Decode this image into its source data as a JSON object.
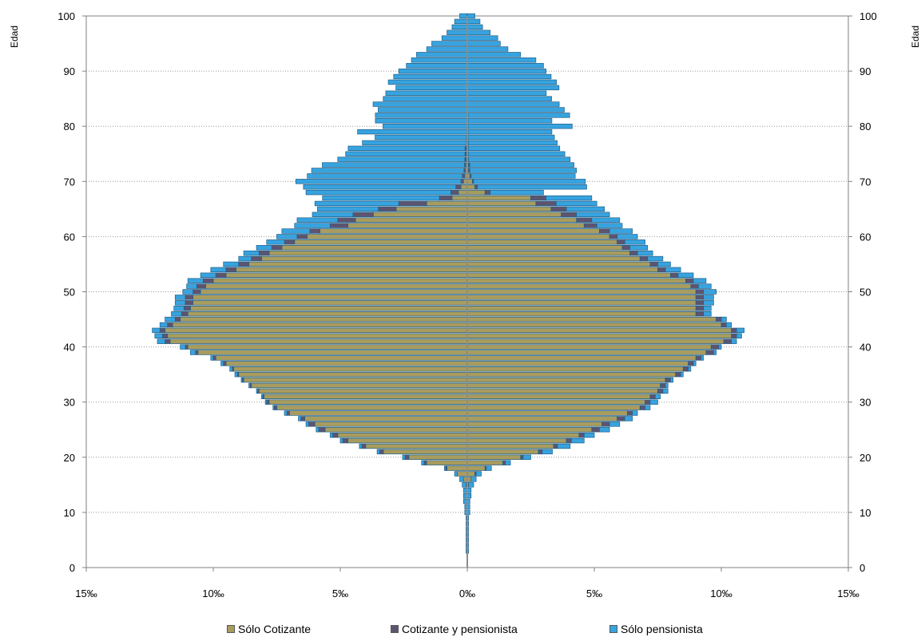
{
  "chart_data": {
    "type": "bar",
    "orientation": "horizontal-population-pyramid",
    "left_side": "women",
    "right_side": "men",
    "y_axis_label_left": "Edad",
    "y_axis_label_right": "Edad",
    "y_ticks": [
      "0",
      "10",
      "20",
      "30",
      "40",
      "50",
      "60",
      "70",
      "80",
      "90",
      "100"
    ],
    "ylim": [
      0,
      100
    ],
    "x_ticks": [
      "15‰",
      "10‰",
      "5‰",
      "0‰",
      "5‰",
      "10‰",
      "15‰"
    ],
    "xlim_per_mille": [
      -15,
      15
    ],
    "grid": "horizontal dotted lines at each 10 years",
    "legend_position": "bottom",
    "legend": [
      {
        "name": "Sólo Cotizante",
        "color": "#a89c5e"
      },
      {
        "name": "Cotizante y pensionista",
        "color": "#5d5470"
      },
      {
        "name": "Sólo pensionista",
        "color": "#37a3df"
      }
    ],
    "ages": [
      3,
      4,
      5,
      6,
      7,
      8,
      9,
      10,
      11,
      12,
      13,
      14,
      15,
      16,
      17,
      18,
      19,
      20,
      21,
      22,
      23,
      24,
      25,
      26,
      27,
      28,
      29,
      30,
      31,
      32,
      33,
      34,
      35,
      36,
      37,
      38,
      39,
      40,
      41,
      42,
      43,
      44,
      45,
      46,
      47,
      48,
      49,
      50,
      51,
      52,
      53,
      54,
      55,
      56,
      57,
      58,
      59,
      60,
      61,
      62,
      63,
      64,
      65,
      66,
      67,
      68,
      69,
      70,
      71,
      72,
      73,
      74,
      75,
      76,
      77,
      78,
      79,
      80,
      81,
      82,
      83,
      84,
      85,
      86,
      87,
      88,
      89,
      90,
      91,
      92,
      93,
      94,
      95,
      96,
      97,
      98,
      99,
      100
    ],
    "series_left": {
      "cotizante": [
        0,
        0,
        0,
        0,
        0,
        0,
        0,
        0,
        0,
        0,
        0,
        0,
        0.05,
        0.15,
        0.4,
        0.8,
        1.6,
        2.3,
        3.3,
        4,
        4.7,
        5.1,
        5.6,
        6,
        6.4,
        7,
        7.5,
        7.8,
        8,
        8.2,
        8.5,
        8.8,
        9,
        9.2,
        9.5,
        9.9,
        10.6,
        11,
        11.7,
        11.8,
        11.9,
        11.6,
        11.3,
        11,
        10.9,
        10.8,
        10.8,
        10.5,
        10.3,
        10,
        9.5,
        9.1,
        8.6,
        8.1,
        7.8,
        7.3,
        6.8,
        6.3,
        5.8,
        4.7,
        4.4,
        3.7,
        2.8,
        1.6,
        0.6,
        0.35,
        0.25,
        0.15,
        0.1,
        0.08,
        0.06,
        0.05,
        0.04,
        0.04,
        0.03,
        0.03,
        0.02,
        0.02,
        0.02,
        0.02,
        0.01,
        0.01,
        0.01,
        0.01,
        0.01,
        0.01,
        0,
        0,
        0,
        0,
        0,
        0,
        0,
        0,
        0,
        0,
        0,
        0
      ],
      "cotizante_y_pensionista": [
        0,
        0,
        0,
        0,
        0,
        0,
        0,
        0,
        0,
        0,
        0,
        0,
        0,
        0,
        0,
        0.05,
        0.1,
        0.15,
        0.15,
        0.15,
        0.2,
        0.2,
        0.25,
        0.25,
        0.15,
        0.1,
        0.1,
        0.1,
        0.05,
        0.05,
        0.05,
        0.05,
        0.05,
        0.05,
        0.1,
        0.1,
        0.1,
        0.1,
        0.2,
        0.2,
        0.2,
        0.2,
        0.2,
        0.25,
        0.25,
        0.3,
        0.3,
        0.3,
        0.35,
        0.4,
        0.4,
        0.4,
        0.4,
        0.4,
        0.4,
        0.4,
        0.4,
        0.4,
        0.4,
        0.7,
        0.7,
        0.8,
        0.7,
        1.1,
        0.5,
        0.3,
        0.2,
        0.1,
        0.1,
        0.05,
        0.05,
        0.05,
        0.05,
        0.05,
        0,
        0,
        0,
        0,
        0,
        0,
        0,
        0,
        0,
        0,
        0,
        0,
        0,
        0,
        0,
        0,
        0,
        0,
        0,
        0,
        0,
        0,
        0,
        0
      ],
      "solo_pensionista": [
        0.05,
        0.05,
        0.05,
        0.05,
        0.05,
        0.05,
        0.05,
        0.1,
        0.1,
        0.15,
        0.15,
        0.15,
        0.15,
        0.15,
        0.1,
        0.05,
        0.1,
        0.1,
        0.1,
        0.1,
        0.1,
        0.1,
        0.1,
        0.1,
        0.1,
        0.1,
        0.05,
        0.05,
        0.05,
        0.05,
        0.05,
        0.05,
        0.1,
        0.1,
        0.1,
        0.1,
        0.2,
        0.2,
        0.3,
        0.3,
        0.3,
        0.3,
        0.4,
        0.4,
        0.4,
        0.4,
        0.4,
        0.4,
        0.4,
        0.6,
        0.6,
        0.6,
        0.6,
        0.5,
        0.6,
        0.6,
        0.7,
        0.8,
        1.1,
        1.4,
        1.6,
        1.6,
        2.4,
        3.3,
        4.6,
        5.7,
        6,
        6.5,
        6.1,
        6.0,
        5.6,
        5.0,
        4.7,
        4.6,
        4.1,
        3.6,
        4.3,
        3.3,
        3.6,
        3.6,
        3.5,
        3.7,
        3.3,
        3.2,
        2.8,
        3.1,
        2.9,
        2.7,
        2.4,
        2.2,
        2.0,
        1.6,
        1.4,
        1.0,
        0.8,
        0.6,
        0.5,
        0.3,
        0.2,
        0.15,
        0.1,
        0.08,
        0.05,
        0.03
      ]
    },
    "series_right": {
      "cotizante": [
        0,
        0,
        0,
        0,
        0,
        0,
        0,
        0,
        0,
        0,
        0,
        0,
        0.05,
        0.15,
        0.3,
        0.7,
        1.4,
        2.1,
        2.8,
        3.4,
        3.9,
        4.4,
        4.9,
        5.3,
        5.9,
        6.3,
        6.8,
        7,
        7.2,
        7.5,
        7.6,
        7.8,
        8.2,
        8.5,
        8.7,
        9.0,
        9.4,
        9.6,
        10.1,
        10.4,
        10.4,
        10.0,
        9.8,
        9.0,
        9.0,
        9.0,
        9.0,
        9.0,
        8.8,
        8.6,
        8.0,
        7.5,
        7.2,
        6.8,
        6.4,
        6.1,
        5.9,
        5.6,
        5.2,
        4.6,
        4.3,
        3.7,
        3.3,
        2.7,
        2.5,
        0.7,
        0.3,
        0.2,
        0.1,
        0.05,
        0.05,
        0.05,
        0.04,
        0.04,
        0.04,
        0.03,
        0.03,
        0.03,
        0.03,
        0.03,
        0.02,
        0.02,
        0.02,
        0.01,
        0.01,
        0.01,
        0,
        0,
        0,
        0,
        0,
        0,
        0,
        0,
        0,
        0,
        0,
        0
      ],
      "cotizante_y_pensionista": [
        0,
        0,
        0,
        0,
        0,
        0,
        0,
        0,
        0,
        0,
        0,
        0,
        0,
        0,
        0.05,
        0.05,
        0.1,
        0.1,
        0.15,
        0.15,
        0.2,
        0.2,
        0.3,
        0.3,
        0.3,
        0.2,
        0.2,
        0.2,
        0.2,
        0.2,
        0.2,
        0.2,
        0.2,
        0.2,
        0.2,
        0.2,
        0.3,
        0.3,
        0.3,
        0.2,
        0.2,
        0.2,
        0.2,
        0.3,
        0.3,
        0.3,
        0.3,
        0.3,
        0.3,
        0.3,
        0.3,
        0.3,
        0.3,
        0.3,
        0.3,
        0.3,
        0.3,
        0.3,
        0.4,
        0.5,
        0.6,
        0.6,
        0.6,
        0.8,
        0.6,
        0.2,
        0.1,
        0.05,
        0.05,
        0.05,
        0.05,
        0,
        0,
        0,
        0,
        0,
        0,
        0,
        0,
        0,
        0,
        0,
        0,
        0,
        0,
        0,
        0,
        0,
        0,
        0,
        0,
        0,
        0,
        0,
        0,
        0,
        0,
        0,
        0,
        0
      ],
      "solo_pensionista": [
        0.05,
        0.05,
        0.05,
        0.05,
        0.05,
        0.05,
        0.05,
        0.1,
        0.1,
        0.1,
        0.15,
        0.15,
        0.2,
        0.2,
        0.2,
        0.2,
        0.2,
        0.3,
        0.4,
        0.5,
        0.5,
        0.4,
        0.4,
        0.4,
        0.3,
        0.2,
        0.2,
        0.3,
        0.2,
        0.2,
        0.1,
        0.1,
        0.1,
        0.1,
        0.1,
        0.1,
        0.1,
        0.1,
        0.2,
        0.2,
        0.3,
        0.2,
        0.2,
        0.3,
        0.3,
        0.4,
        0.4,
        0.5,
        0.5,
        0.5,
        0.6,
        0.6,
        0.5,
        0.6,
        0.6,
        0.7,
        0.8,
        0.8,
        0.9,
        1.0,
        1.1,
        1.3,
        1.5,
        1.6,
        1.8,
        2.1,
        4.3,
        4.4,
        4.1,
        4.2,
        4.1,
        4.0,
        3.8,
        3.6,
        3.5,
        3.4,
        3.3,
        4.1,
        3.3,
        4.0,
        3.8,
        3.6,
        3.3,
        3.1,
        3.6,
        3.5,
        3.3,
        3.1,
        3.0,
        2.7,
        2.1,
        1.6,
        1.3,
        1.2,
        0.9,
        0.6,
        0.5,
        0.3,
        0.2,
        0.15,
        0.1,
        0.05
      ]
    }
  }
}
